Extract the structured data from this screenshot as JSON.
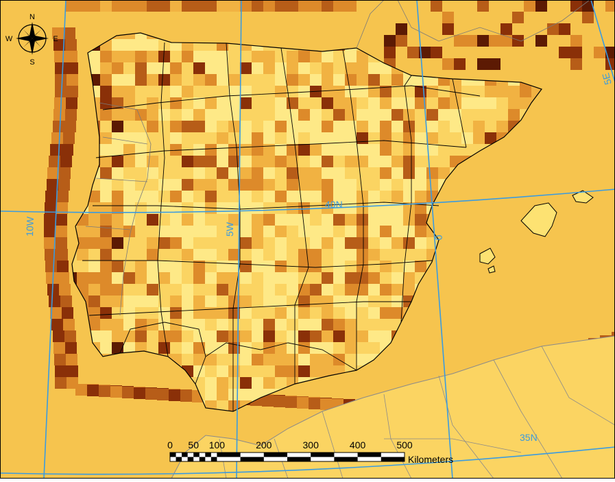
{
  "map": {
    "colors": {
      "sea_background": "#f6c44e",
      "land_light": "#fde272",
      "grid_line": "#3a9be0",
      "border": "#000000",
      "africa_border": "#8a8a8a",
      "cell_palette": [
        "#fee987",
        "#fbd462",
        "#f1b242",
        "#dd8a2a",
        "#b75d18",
        "#8a3008",
        "#5c1a03"
      ]
    },
    "compass": {
      "n": "N",
      "s": "S",
      "e": "E",
      "w": "W"
    },
    "graticule": {
      "lon_10w": "10W",
      "lon_5w": "5W",
      "lon_0": "0",
      "lon_5e": "5E",
      "lat_40n": "40N",
      "lat_35n": "35N"
    },
    "scalebar": {
      "ticks": [
        "0",
        "50",
        "100",
        "200",
        "300",
        "400",
        "500"
      ],
      "units": "Kilometers"
    }
  }
}
